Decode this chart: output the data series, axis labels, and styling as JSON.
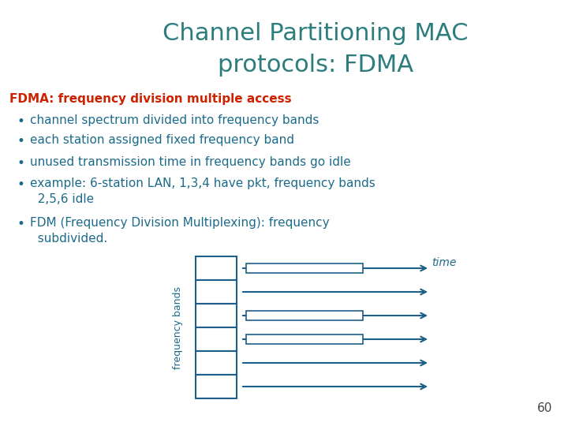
{
  "title_line1": "Channel Partitioning MAC",
  "title_line2": "protocols: FDMA",
  "title_color": "#2E7D7D",
  "background_color": "#FFFFFF",
  "header_text": "FDMA: frequency division multiple access",
  "header_color": "#CC2200",
  "bullet_color": "#1C6B8A",
  "bullet_points": [
    "channel spectrum divided into frequency bands",
    "each station assigned fixed frequency band",
    "unused transmission time in frequency bands go idle",
    "example: 6-station LAN, 1,3,4 have pkt, frequency bands\n  2,5,6 idle",
    "FDM (Frequency Division Multiplexing): frequency\n  subdivided."
  ],
  "diagram_color": "#1C5F8A",
  "num_bands": 6,
  "page_number": "60",
  "has_packet_topdown": [
    true,
    false,
    true,
    true,
    false,
    false
  ],
  "time_label_color": "#1C6B8A",
  "freq_label_color": "#1C6B8A"
}
